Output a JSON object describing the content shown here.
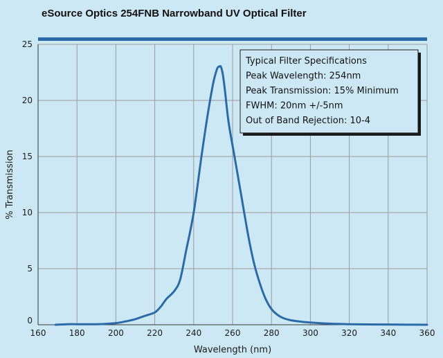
{
  "chart_data": {
    "type": "line",
    "title": "eSource Optics 254FNB Narrowband UV Optical Filter",
    "xlabel": "Wavelength (nm)",
    "ylabel": "% Transmission",
    "xlim": [
      160,
      360
    ],
    "ylim": [
      0,
      25
    ],
    "x_ticks": [
      "160",
      "180",
      "200",
      "220",
      "240",
      "260",
      "280",
      "300",
      "320",
      "340",
      "360"
    ],
    "y_ticks": [
      "0",
      "5",
      "10",
      "15",
      "20",
      "25"
    ],
    "grid": true,
    "series": [
      {
        "color": "#2a6aa8",
        "x": [
          169,
          175,
          180,
          190,
          200,
          205,
          210,
          215,
          220,
          223,
          226,
          230,
          233,
          236,
          240,
          244,
          247,
          250,
          252,
          253,
          254,
          255,
          256,
          258,
          261,
          264,
          268,
          271,
          274,
          277,
          280,
          283,
          286,
          290,
          295,
          300,
          310,
          320,
          330,
          340,
          350,
          360
        ],
        "y": [
          0.0,
          0.05,
          0.05,
          0.05,
          0.15,
          0.3,
          0.5,
          0.8,
          1.1,
          1.6,
          2.3,
          3.0,
          4.0,
          6.5,
          10.0,
          15.0,
          18.5,
          21.5,
          22.8,
          23.0,
          23.0,
          22.3,
          21.0,
          18.0,
          15.0,
          12.0,
          8.0,
          5.5,
          3.7,
          2.3,
          1.4,
          0.9,
          0.6,
          0.4,
          0.28,
          0.2,
          0.1,
          0.05,
          0.03,
          0.02,
          0.01,
          0.0
        ]
      }
    ],
    "legend_box": {
      "position": "top-right",
      "lines": [
        "Typical Filter Specifications",
        "Peak Wavelength: 254nm",
        "Peak Transmission: 15% Minimum",
        "FWHM: 20nm +/-5nm",
        "Out of Band Rejection: 10-4"
      ]
    },
    "colors": {
      "background": "#cde8f5",
      "grid": "#9a9a9a",
      "line": "#2a6aa8",
      "title_bar": "#2a6aa8",
      "box_shadow": "#1a1a1a"
    }
  }
}
